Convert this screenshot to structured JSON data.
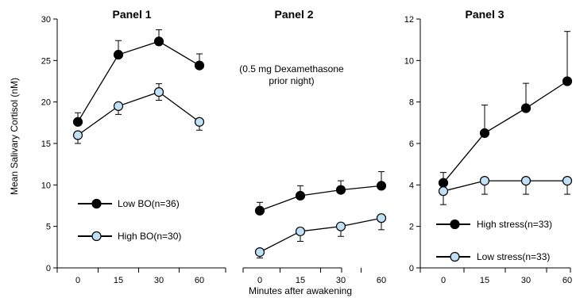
{
  "colors": {
    "filled_marker": "#000000",
    "open_marker": "#bfe0f5",
    "line": "#000000"
  },
  "chart_data": {
    "ylabel": "Mean Salivary Cortisol (nM)",
    "xlabel": "Minutes after awakening",
    "panels": [
      {
        "type": "line",
        "title": "Panel 1",
        "categories": [
          "0",
          "15",
          "30",
          "60"
        ],
        "ylim": [
          0,
          30
        ],
        "yticks": [
          0,
          5,
          10,
          15,
          20,
          25,
          30
        ],
        "legend_placement": "bottom-left",
        "annotation": "",
        "series": [
          {
            "name": "Low BO(n=36)",
            "marker": "filled",
            "values": [
              17.6,
              25.7,
              27.3,
              24.4
            ],
            "errors": [
              1.1,
              1.7,
              1.4,
              1.4
            ]
          },
          {
            "name": "High BO(n=30)",
            "marker": "open",
            "values": [
              16.0,
              19.5,
              21.2,
              17.6
            ],
            "errors": [
              1.0,
              1.0,
              1.0,
              1.0
            ]
          }
        ]
      },
      {
        "type": "line",
        "title": "Panel 2",
        "categories": [
          "0",
          "15",
          "30",
          "60"
        ],
        "ylim": [
          0,
          30
        ],
        "yticks": [],
        "legend_placement": "none",
        "annotation": "(0.5 mg Dexamethasone\nprior night)",
        "series": [
          {
            "name": "",
            "marker": "filled",
            "values": [
              6.9,
              8.7,
              9.4,
              9.9
            ],
            "errors": [
              1.0,
              1.2,
              1.1,
              1.7
            ]
          },
          {
            "name": "",
            "marker": "open",
            "values": [
              1.9,
              4.4,
              5.0,
              6.0
            ],
            "errors": [
              0.7,
              1.2,
              1.2,
              1.4
            ]
          }
        ]
      },
      {
        "type": "line",
        "title": "Panel 3",
        "categories": [
          "0",
          "15",
          "30",
          "60"
        ],
        "ylim": [
          0,
          12
        ],
        "yticks": [
          0,
          2,
          4,
          6,
          8,
          10,
          12
        ],
        "legend_placement": "bottom-left",
        "annotation": "",
        "series": [
          {
            "name": "High stress(n=33)",
            "marker": "filled",
            "values": [
              4.1,
              6.5,
              7.7,
              9.0
            ],
            "errors": [
              0.5,
              1.35,
              1.2,
              2.4
            ]
          },
          {
            "name": "Low stress(n=33)",
            "marker": "open",
            "values": [
              3.7,
              4.2,
              4.2,
              4.2
            ],
            "errors": [
              0.65,
              0.65,
              0.65,
              0.65
            ]
          }
        ]
      }
    ]
  }
}
